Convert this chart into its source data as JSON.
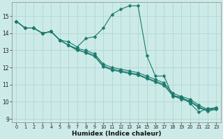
{
  "xlabel": "Humidex (Indice chaleur)",
  "bg_color": "#cceae7",
  "line_color": "#1a7a6e",
  "grid_color": "#aad4d0",
  "xlim": [
    -0.5,
    23.5
  ],
  "ylim": [
    8.8,
    15.8
  ],
  "yticks": [
    9,
    10,
    11,
    12,
    13,
    14,
    15
  ],
  "xticks": [
    0,
    1,
    2,
    3,
    4,
    5,
    6,
    7,
    8,
    9,
    10,
    11,
    12,
    13,
    14,
    15,
    16,
    17,
    18,
    19,
    20,
    21,
    22,
    23
  ],
  "series": [
    [
      14.7,
      14.3,
      14.3,
      14.0,
      14.1,
      13.6,
      13.5,
      13.2,
      13.7,
      13.8,
      14.3,
      15.1,
      15.4,
      15.6,
      15.6,
      12.7,
      11.5,
      11.5,
      10.3,
      10.3,
      9.9,
      9.4,
      9.6,
      9.65
    ],
    [
      14.7,
      14.3,
      14.3,
      14.0,
      14.1,
      13.6,
      13.3,
      13.1,
      13.0,
      12.8,
      12.2,
      12.0,
      11.9,
      11.8,
      11.7,
      11.5,
      11.3,
      11.1,
      10.5,
      10.3,
      10.15,
      9.8,
      9.55,
      9.65
    ],
    [
      14.7,
      14.3,
      14.3,
      14.0,
      14.1,
      13.6,
      13.3,
      13.0,
      12.9,
      12.7,
      12.1,
      11.9,
      11.8,
      11.7,
      11.6,
      11.4,
      11.2,
      11.0,
      10.4,
      10.2,
      10.05,
      9.7,
      9.5,
      9.6
    ],
    [
      14.7,
      14.3,
      14.3,
      14.0,
      14.1,
      13.6,
      13.3,
      13.05,
      12.85,
      12.65,
      12.05,
      11.85,
      11.75,
      11.65,
      11.55,
      11.35,
      11.15,
      10.95,
      10.35,
      10.15,
      10.0,
      9.65,
      9.45,
      9.55
    ]
  ],
  "marker": "D",
  "markersize": 2.5,
  "linewidth": 0.8
}
